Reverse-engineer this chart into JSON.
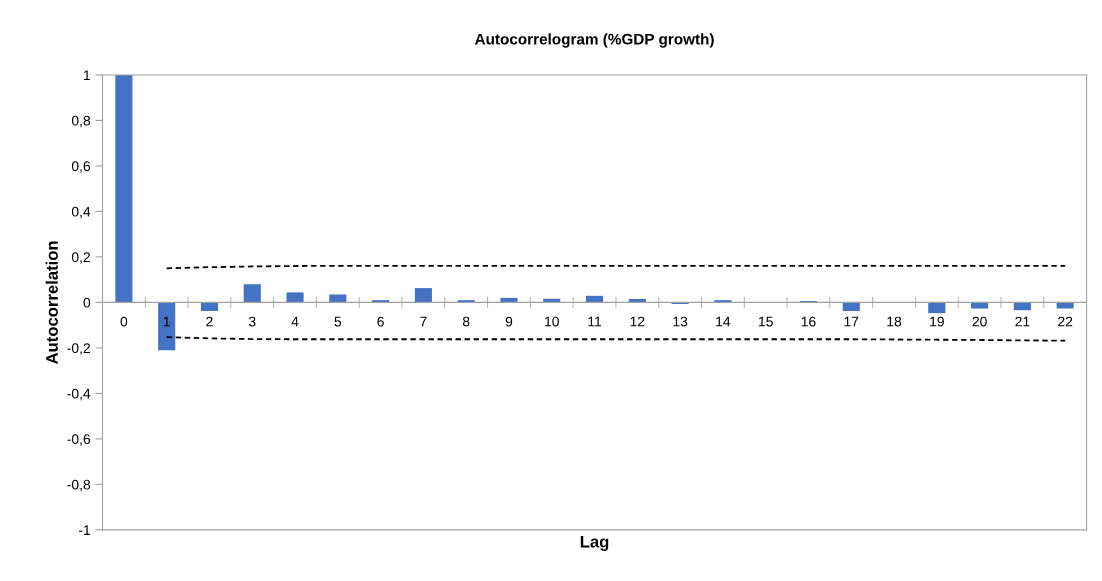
{
  "chart_data": {
    "type": "bar",
    "title": "Autocorrelogram (%GDP growth)",
    "xlabel": "Lag",
    "ylabel": "Autocorrelation",
    "categories": [
      "0",
      "1",
      "2",
      "3",
      "4",
      "5",
      "6",
      "7",
      "8",
      "9",
      "10",
      "11",
      "12",
      "13",
      "14",
      "15",
      "16",
      "17",
      "18",
      "19",
      "20",
      "21",
      "22"
    ],
    "series": [
      {
        "color": "#4472c4",
        "values": [
          1,
          -0.21,
          -0.038,
          0.08,
          0.044,
          0.035,
          0.01,
          0.063,
          0.01,
          0.02,
          0.016,
          0.029,
          0.015,
          -0.007,
          0.01,
          0,
          0.006,
          -0.038,
          0,
          -0.047,
          -0.027,
          -0.034,
          -0.027
        ]
      },
      {
        "type": "line",
        "color": "#000000",
        "line_style": "dashed",
        "values": [
          null,
          0.15,
          0.155,
          0.158,
          0.16,
          0.161,
          0.161,
          0.161,
          0.161,
          0.161,
          0.161,
          0.161,
          0.161,
          0.161,
          0.161,
          0.161,
          0.161,
          0.161,
          0.161,
          0.161,
          0.161,
          0.161,
          0.161
        ]
      },
      {
        "type": "line",
        "color": "#000000",
        "line_style": "dashed",
        "values": [
          null,
          -0.153,
          -0.158,
          -0.161,
          -0.162,
          -0.162,
          -0.162,
          -0.162,
          -0.162,
          -0.162,
          -0.162,
          -0.162,
          -0.162,
          -0.162,
          -0.162,
          -0.162,
          -0.162,
          -0.162,
          -0.163,
          -0.164,
          -0.165,
          -0.167,
          -0.168
        ]
      }
    ],
    "ylim": [
      -1,
      1
    ],
    "yticks": [
      {
        "value": -1,
        "label": "-1"
      },
      {
        "value": -0.8,
        "label": "-0,8"
      },
      {
        "value": -0.6,
        "label": "-0,6"
      },
      {
        "value": -0.4,
        "label": "-0,4"
      },
      {
        "value": -0.2,
        "label": "-0,2"
      },
      {
        "value": 0,
        "label": "0"
      },
      {
        "value": 0.2,
        "label": "0,2"
      },
      {
        "value": 0.4,
        "label": "0,4"
      },
      {
        "value": 0.6,
        "label": "0,6"
      },
      {
        "value": 0.8,
        "label": "0,8"
      },
      {
        "value": 1,
        "label": "1"
      }
    ],
    "grid": false,
    "legend": false
  }
}
